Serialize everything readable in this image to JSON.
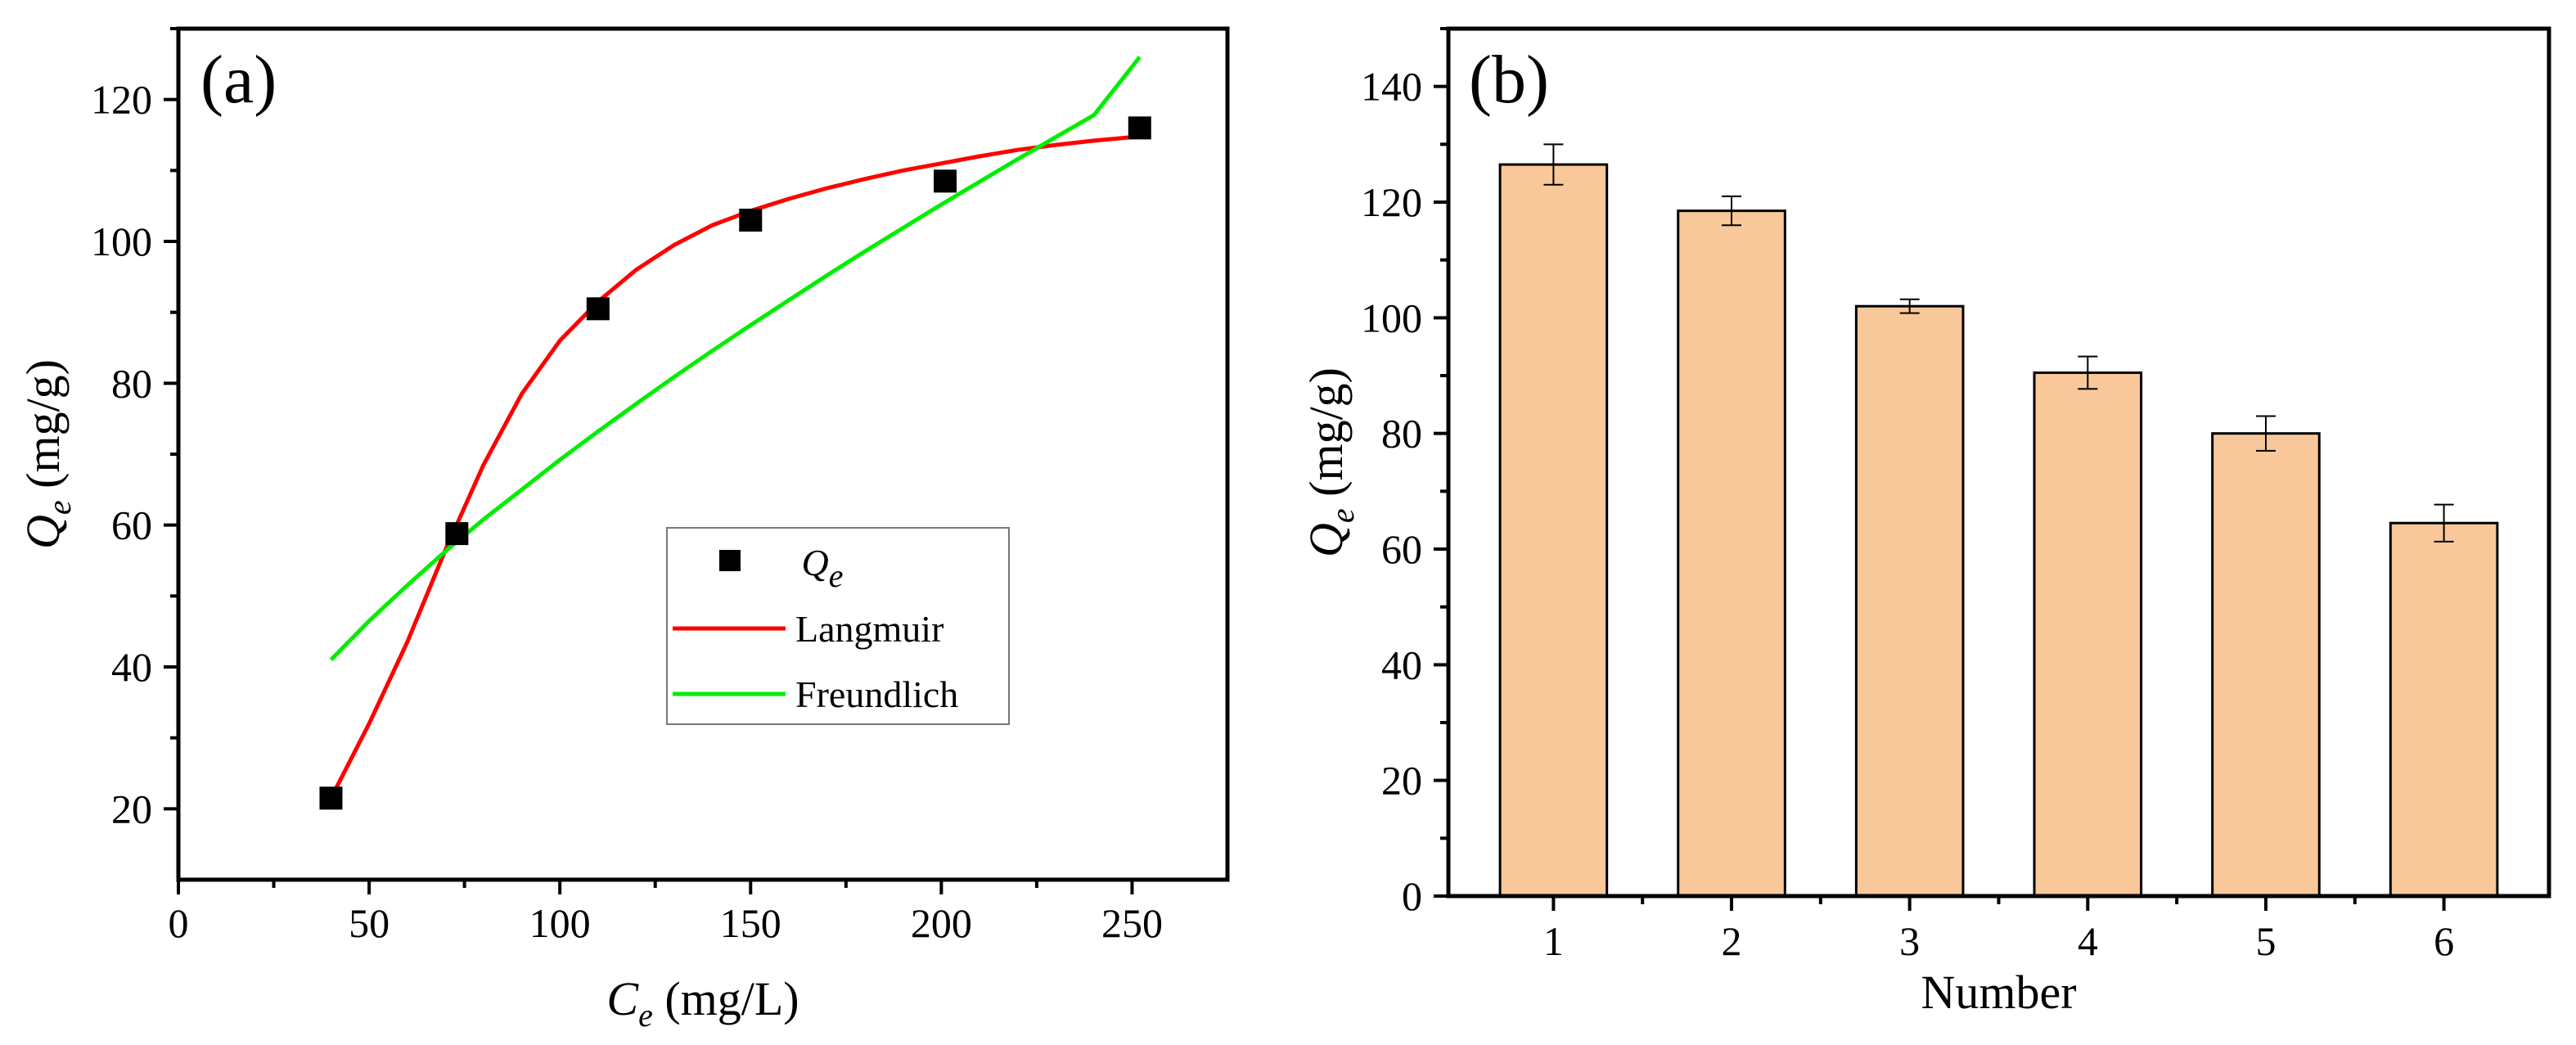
{
  "chart_data": [
    {
      "panel_label": "(a)",
      "type": "scatter",
      "xlabel": {
        "main": "C",
        "sub": "e",
        "unit": " (mg/L)"
      },
      "ylabel": {
        "main": "Q",
        "sub": "e",
        "unit": " (mg/g)"
      },
      "xlim": [
        0,
        275
      ],
      "ylim": [
        10,
        130
      ],
      "xticks": [
        0,
        50,
        100,
        150,
        200,
        250
      ],
      "yticks": [
        20,
        40,
        60,
        80,
        100,
        120
      ],
      "points": {
        "name_main": "Q",
        "name_sub": "e",
        "marker": "square",
        "color": "#000000",
        "x": [
          40,
          73,
          110,
          150,
          201,
          252
        ],
        "y": [
          21.5,
          58.8,
          90.5,
          103.0,
          108.5,
          116.0
        ]
      },
      "series": [
        {
          "name": "Langmuir",
          "color": "#ff0000",
          "x": [
            40,
            50,
            60,
            70,
            80,
            90,
            100,
            110,
            120,
            130,
            140,
            150,
            160,
            170,
            180,
            190,
            200,
            210,
            220,
            230,
            240,
            252
          ],
          "y": [
            21.5,
            32.0,
            43.5,
            56.5,
            68.5,
            78.5,
            86.0,
            91.5,
            96.0,
            99.5,
            102.3,
            104.3,
            106.0,
            107.5,
            108.8,
            110.0,
            111.0,
            112.0,
            112.9,
            113.6,
            114.2,
            114.8
          ]
        },
        {
          "name": "Freundlich",
          "color": "#00ee00",
          "x": [
            40,
            50,
            60,
            70,
            80,
            90,
            100,
            110,
            120,
            130,
            140,
            150,
            160,
            170,
            180,
            190,
            200,
            210,
            220,
            230,
            240,
            252
          ],
          "y": [
            41.0,
            46.5,
            51.5,
            56.3,
            60.8,
            65.0,
            69.2,
            73.2,
            77.1,
            80.9,
            84.6,
            88.2,
            91.7,
            95.2,
            98.6,
            101.9,
            105.2,
            108.4,
            111.6,
            114.7,
            117.8,
            126.0
          ]
        }
      ]
    },
    {
      "panel_label": "(b)",
      "type": "bar",
      "xlabel": "Number",
      "ylabel": {
        "main": "Q",
        "sub": "e",
        "unit": " (mg/g)"
      },
      "ylim": [
        0,
        150
      ],
      "yticks": [
        0,
        20,
        40,
        60,
        80,
        100,
        120,
        140
      ],
      "categories": [
        "1",
        "2",
        "3",
        "4",
        "5",
        "6"
      ],
      "values": [
        126.5,
        118.5,
        102.0,
        90.5,
        80.0,
        64.5
      ],
      "errors": [
        3.5,
        2.5,
        1.2,
        2.8,
        3.0,
        3.2
      ],
      "bar_color": "#f8c89a",
      "edge_color": "#000000"
    }
  ]
}
